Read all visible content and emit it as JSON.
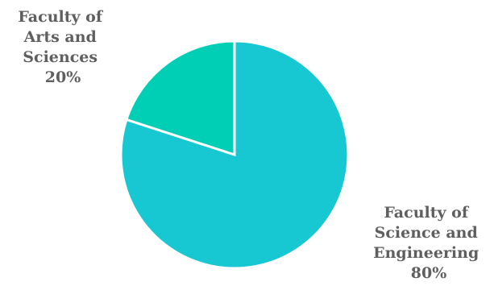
{
  "chart_data": {
    "type": "pie",
    "title": "",
    "slices": [
      {
        "label": "Faculty of Science and Engineering",
        "label_lines": [
          "Faculty of",
          "Science and",
          "Engineering"
        ],
        "value": 80,
        "value_label": "80%",
        "color": "#17C7D2"
      },
      {
        "label": "Faculty of Arts and Sciences",
        "label_lines": [
          "Faculty of",
          "Arts and",
          "Sciences"
        ],
        "value": 20,
        "value_label": "20%",
        "color": "#00CEB5"
      }
    ],
    "legend": "none"
  }
}
